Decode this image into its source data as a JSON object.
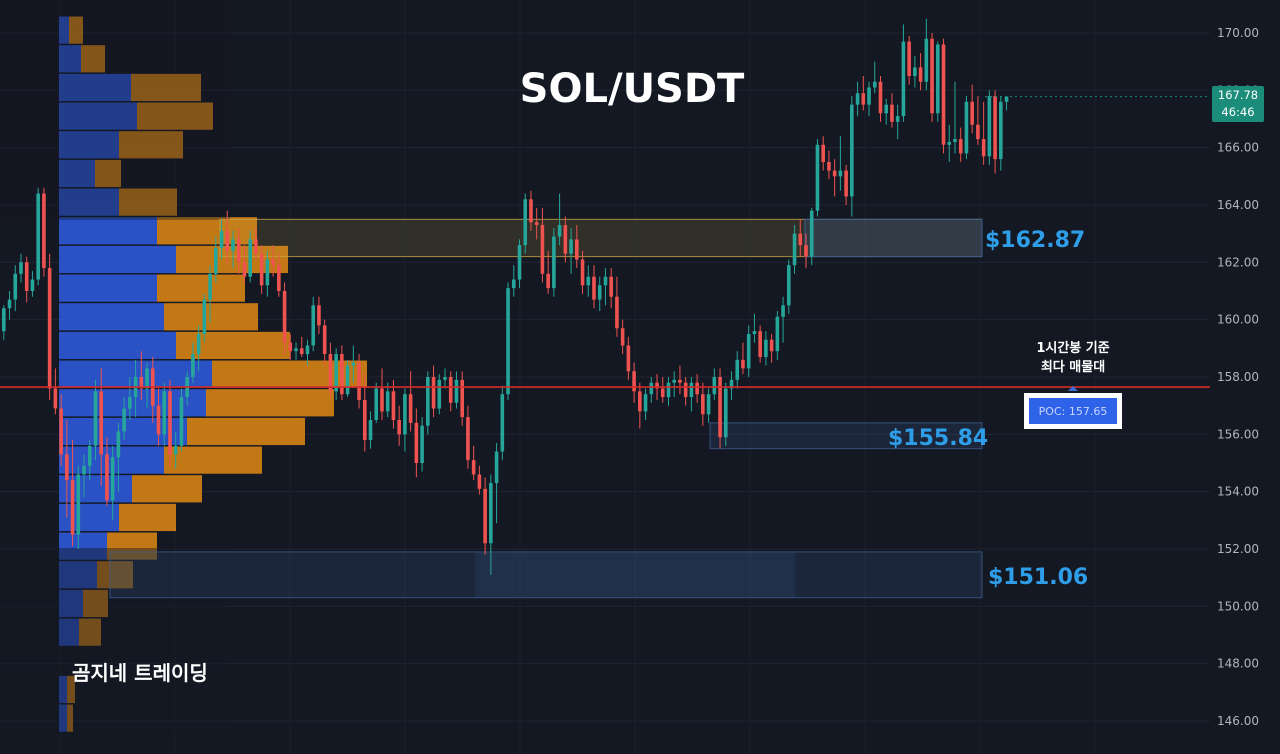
{
  "chart_data": {
    "type": "candlestick",
    "title": "SOL/USDT",
    "watermark": "곰지네 트레이딩",
    "y_axis": {
      "ylim": [
        145.4,
        171.0
      ],
      "ticks": [
        170.0,
        168.0,
        166.0,
        164.0,
        162.0,
        160.0,
        158.0,
        156.0,
        154.0,
        152.0,
        150.0,
        148.0,
        146.0
      ],
      "tick_labels": [
        "170.00",
        "168.00",
        "166.00",
        "164.00",
        "162.00",
        "160.00",
        "158.00",
        "156.00",
        "154.00",
        "152.00",
        "150.00",
        "148.00",
        "146.00"
      ]
    },
    "current_price": {
      "value": 167.78,
      "label": "167.78",
      "countdown": "46:46",
      "color": "#1b8c7a"
    },
    "poc": {
      "value": 157.65,
      "label": "POC: 157.65",
      "note_lines": [
        "1시간봉 기준",
        "최다 매물대"
      ],
      "line_color": "#d42a2a"
    },
    "zones": [
      {
        "label": "$162.87",
        "low": 162.2,
        "high": 163.5,
        "color": "#e0b84a"
      },
      {
        "label": "$155.84",
        "low": 155.5,
        "high": 156.4,
        "color": "#3b6fa8"
      },
      {
        "label": "$151.06",
        "low": 150.3,
        "high": 151.9,
        "color": "#3b6fa8"
      }
    ],
    "volume_profile": {
      "bins": [
        {
          "price": 170.1,
          "buy": 10,
          "sell": 14
        },
        {
          "price": 169.1,
          "buy": 22,
          "sell": 24
        },
        {
          "price": 168.1,
          "buy": 72,
          "sell": 70
        },
        {
          "price": 167.1,
          "buy": 78,
          "sell": 76
        },
        {
          "price": 166.1,
          "buy": 60,
          "sell": 64
        },
        {
          "price": 165.1,
          "buy": 36,
          "sell": 26
        },
        {
          "price": 164.1,
          "buy": 60,
          "sell": 58
        },
        {
          "price": 163.1,
          "buy": 98,
          "sell": 100
        },
        {
          "price": 162.1,
          "buy": 117,
          "sell": 112
        },
        {
          "price": 161.1,
          "buy": 98,
          "sell": 88
        },
        {
          "price": 160.1,
          "buy": 105,
          "sell": 94
        },
        {
          "price": 159.1,
          "buy": 117,
          "sell": 114
        },
        {
          "price": 158.1,
          "buy": 153,
          "sell": 155
        },
        {
          "price": 157.1,
          "buy": 147,
          "sell": 128
        },
        {
          "price": 156.1,
          "buy": 128,
          "sell": 118
        },
        {
          "price": 155.1,
          "buy": 105,
          "sell": 98
        },
        {
          "price": 154.1,
          "buy": 73,
          "sell": 70
        },
        {
          "price": 153.1,
          "buy": 60,
          "sell": 57
        },
        {
          "price": 152.1,
          "buy": 48,
          "sell": 50
        },
        {
          "price": 151.1,
          "buy": 38,
          "sell": 36
        },
        {
          "price": 150.1,
          "buy": 24,
          "sell": 25
        },
        {
          "price": 149.1,
          "buy": 20,
          "sell": 22
        },
        {
          "price": 147.1,
          "buy": 8,
          "sell": 8
        },
        {
          "price": 146.1,
          "buy": 8,
          "sell": 6
        }
      ],
      "buy_color": "#2e5de0",
      "sell_color": "#e08a12"
    },
    "candles": [
      [
        159.6,
        160.5,
        159.3,
        160.4
      ],
      [
        160.4,
        161.0,
        160.0,
        160.7
      ],
      [
        160.7,
        161.9,
        160.3,
        161.6
      ],
      [
        161.6,
        162.3,
        161.3,
        162.0
      ],
      [
        162.0,
        162.2,
        160.6,
        161.0
      ],
      [
        161.0,
        161.7,
        160.8,
        161.4
      ],
      [
        161.4,
        164.6,
        161.2,
        164.4
      ],
      [
        164.4,
        164.6,
        161.5,
        161.8
      ],
      [
        161.8,
        162.3,
        157.2,
        157.6
      ],
      [
        157.6,
        158.3,
        156.7,
        156.9
      ],
      [
        156.9,
        157.4,
        154.9,
        155.3
      ],
      [
        155.3,
        156.5,
        153.1,
        154.4
      ],
      [
        154.4,
        155.8,
        152.1,
        152.5
      ],
      [
        152.5,
        154.9,
        152.0,
        154.6
      ],
      [
        154.6,
        155.3,
        153.8,
        154.9
      ],
      [
        154.9,
        155.8,
        154.4,
        155.6
      ],
      [
        155.6,
        157.9,
        155.1,
        157.5
      ],
      [
        157.5,
        158.3,
        154.2,
        155.3
      ],
      [
        155.3,
        155.9,
        153.5,
        153.7
      ],
      [
        153.7,
        155.6,
        153.0,
        155.2
      ],
      [
        155.2,
        156.4,
        154.0,
        156.1
      ],
      [
        156.1,
        157.3,
        155.8,
        156.9
      ],
      [
        156.9,
        158.0,
        156.5,
        157.3
      ],
      [
        157.3,
        158.6,
        156.6,
        158.0
      ],
      [
        158.0,
        158.9,
        157.2,
        157.6
      ],
      [
        157.6,
        158.5,
        156.9,
        158.3
      ],
      [
        158.3,
        158.7,
        156.4,
        157.0
      ],
      [
        157.0,
        157.6,
        155.6,
        156.0
      ],
      [
        156.0,
        157.8,
        155.6,
        157.5
      ],
      [
        157.5,
        157.9,
        154.9,
        155.3
      ],
      [
        155.3,
        156.1,
        154.8,
        155.6
      ],
      [
        155.6,
        157.6,
        155.4,
        157.3
      ],
      [
        157.3,
        158.2,
        157.0,
        158.0
      ],
      [
        158.0,
        159.2,
        157.8,
        158.8
      ],
      [
        158.8,
        159.8,
        158.2,
        159.5
      ],
      [
        159.5,
        160.9,
        159.2,
        160.7
      ],
      [
        160.7,
        161.9,
        159.9,
        161.6
      ],
      [
        161.6,
        162.9,
        161.3,
        162.5
      ],
      [
        162.5,
        163.5,
        162.1,
        163.1
      ],
      [
        163.1,
        163.8,
        161.9,
        162.4
      ],
      [
        162.4,
        163.1,
        161.8,
        162.8
      ],
      [
        162.8,
        163.2,
        161.6,
        162.0
      ],
      [
        162.0,
        162.6,
        161.3,
        161.5
      ],
      [
        161.5,
        163.1,
        161.3,
        162.8
      ],
      [
        162.8,
        163.2,
        162.1,
        162.3
      ],
      [
        162.3,
        162.6,
        160.9,
        161.2
      ],
      [
        161.2,
        162.4,
        160.8,
        162.1
      ],
      [
        162.1,
        162.6,
        161.5,
        161.9
      ],
      [
        161.9,
        162.3,
        160.8,
        161.0
      ],
      [
        161.0,
        161.3,
        158.8,
        159.2
      ],
      [
        159.2,
        159.5,
        158.6,
        158.9
      ],
      [
        158.9,
        159.2,
        158.6,
        159.0
      ],
      [
        159.0,
        159.4,
        158.7,
        158.8
      ],
      [
        158.8,
        159.3,
        158.4,
        159.1
      ],
      [
        159.1,
        160.8,
        158.9,
        160.5
      ],
      [
        160.5,
        160.8,
        159.5,
        159.8
      ],
      [
        159.8,
        160.0,
        158.4,
        158.8
      ],
      [
        158.8,
        159.2,
        157.3,
        157.5
      ],
      [
        157.5,
        159.0,
        157.2,
        158.8
      ],
      [
        158.8,
        159.1,
        157.2,
        157.4
      ],
      [
        157.4,
        158.6,
        157.3,
        158.4
      ],
      [
        158.4,
        159.1,
        157.8,
        158.5
      ],
      [
        158.5,
        158.8,
        156.9,
        157.2
      ],
      [
        157.2,
        158.1,
        155.4,
        155.8
      ],
      [
        155.8,
        156.8,
        155.5,
        156.5
      ],
      [
        156.5,
        157.8,
        156.4,
        157.6
      ],
      [
        157.6,
        158.3,
        156.5,
        156.8
      ],
      [
        156.8,
        157.8,
        156.6,
        157.5
      ],
      [
        157.5,
        157.9,
        156.2,
        156.5
      ],
      [
        156.5,
        157.0,
        155.6,
        156.0
      ],
      [
        156.0,
        157.6,
        155.4,
        157.4
      ],
      [
        157.4,
        158.2,
        156.1,
        156.4
      ],
      [
        156.4,
        156.9,
        154.5,
        155.0
      ],
      [
        155.0,
        156.6,
        154.7,
        156.3
      ],
      [
        156.3,
        158.2,
        156.0,
        158.0
      ],
      [
        158.0,
        158.4,
        156.6,
        156.9
      ],
      [
        156.9,
        158.1,
        156.7,
        157.9
      ],
      [
        157.9,
        158.3,
        157.6,
        158.0
      ],
      [
        158.0,
        158.2,
        156.8,
        157.1
      ],
      [
        157.1,
        158.2,
        156.9,
        157.9
      ],
      [
        157.9,
        158.2,
        156.3,
        156.6
      ],
      [
        156.6,
        157.0,
        154.8,
        155.1
      ],
      [
        155.1,
        155.6,
        154.4,
        154.6
      ],
      [
        154.6,
        154.9,
        153.9,
        154.1
      ],
      [
        154.1,
        154.5,
        151.8,
        152.2
      ],
      [
        152.2,
        154.6,
        151.1,
        154.3
      ],
      [
        154.3,
        155.7,
        152.9,
        155.4
      ],
      [
        155.4,
        157.7,
        155.1,
        157.4
      ],
      [
        157.4,
        161.3,
        157.2,
        161.1
      ],
      [
        161.1,
        161.9,
        160.8,
        161.4
      ],
      [
        161.4,
        162.8,
        161.1,
        162.6
      ],
      [
        162.6,
        164.4,
        162.3,
        164.2
      ],
      [
        164.2,
        164.5,
        163.1,
        163.4
      ],
      [
        163.4,
        163.9,
        162.8,
        163.3
      ],
      [
        163.3,
        163.9,
        161.3,
        161.6
      ],
      [
        161.6,
        162.4,
        160.9,
        161.1
      ],
      [
        161.1,
        163.2,
        160.8,
        162.9
      ],
      [
        162.9,
        164.4,
        162.6,
        163.3
      ],
      [
        163.3,
        163.6,
        162.0,
        162.3
      ],
      [
        162.3,
        163.2,
        161.6,
        162.8
      ],
      [
        162.8,
        163.3,
        161.8,
        162.1
      ],
      [
        162.1,
        162.4,
        160.9,
        161.2
      ],
      [
        161.2,
        161.9,
        160.8,
        161.5
      ],
      [
        161.5,
        161.9,
        160.4,
        160.7
      ],
      [
        160.7,
        161.5,
        160.3,
        161.2
      ],
      [
        161.2,
        161.8,
        160.5,
        161.5
      ],
      [
        161.5,
        161.8,
        160.4,
        160.8
      ],
      [
        160.8,
        161.5,
        159.4,
        159.7
      ],
      [
        159.7,
        160.0,
        158.8,
        159.1
      ],
      [
        159.1,
        159.4,
        157.9,
        158.2
      ],
      [
        158.2,
        158.5,
        157.1,
        157.5
      ],
      [
        157.5,
        157.8,
        156.2,
        156.8
      ],
      [
        156.8,
        157.6,
        156.5,
        157.4
      ],
      [
        157.4,
        158.0,
        157.1,
        157.8
      ],
      [
        157.8,
        158.1,
        157.2,
        157.6
      ],
      [
        157.6,
        158.0,
        157.1,
        157.3
      ],
      [
        157.3,
        158.0,
        157.0,
        157.8
      ],
      [
        157.8,
        158.2,
        157.3,
        157.9
      ],
      [
        157.9,
        158.4,
        157.4,
        157.8
      ],
      [
        157.8,
        158.0,
        157.0,
        157.3
      ],
      [
        157.3,
        158.0,
        156.8,
        157.8
      ],
      [
        157.8,
        158.1,
        157.1,
        157.4
      ],
      [
        157.4,
        157.8,
        156.3,
        156.7
      ],
      [
        156.7,
        157.6,
        156.4,
        157.4
      ],
      [
        157.4,
        158.3,
        157.2,
        158.0
      ],
      [
        158.0,
        158.3,
        155.5,
        155.9
      ],
      [
        155.9,
        157.8,
        155.6,
        157.6
      ],
      [
        157.6,
        158.2,
        157.2,
        157.9
      ],
      [
        157.9,
        158.9,
        157.6,
        158.6
      ],
      [
        158.6,
        159.2,
        158.1,
        158.3
      ],
      [
        158.3,
        159.8,
        158.0,
        159.5
      ],
      [
        159.5,
        160.2,
        159.2,
        159.6
      ],
      [
        159.6,
        159.8,
        158.5,
        158.7
      ],
      [
        158.7,
        159.6,
        158.4,
        159.3
      ],
      [
        159.3,
        159.5,
        158.5,
        158.9
      ],
      [
        158.9,
        160.3,
        158.6,
        160.1
      ],
      [
        160.1,
        160.8,
        159.2,
        160.5
      ],
      [
        160.5,
        162.1,
        160.2,
        161.9
      ],
      [
        161.9,
        163.3,
        161.6,
        163.0
      ],
      [
        163.0,
        163.5,
        162.2,
        162.6
      ],
      [
        162.6,
        163.0,
        161.8,
        162.2
      ],
      [
        162.2,
        163.9,
        161.9,
        163.8
      ],
      [
        163.8,
        166.3,
        163.6,
        166.1
      ],
      [
        166.1,
        166.4,
        165.2,
        165.5
      ],
      [
        165.5,
        165.9,
        164.9,
        165.2
      ],
      [
        165.2,
        165.6,
        164.3,
        165.0
      ],
      [
        165.0,
        166.4,
        164.5,
        165.2
      ],
      [
        165.2,
        165.4,
        164.0,
        164.3
      ],
      [
        164.3,
        167.8,
        163.6,
        167.5
      ],
      [
        167.5,
        168.3,
        167.1,
        167.9
      ],
      [
        167.9,
        168.5,
        167.3,
        167.5
      ],
      [
        167.5,
        168.3,
        167.1,
        168.1
      ],
      [
        168.1,
        169.0,
        167.9,
        168.3
      ],
      [
        168.3,
        168.5,
        166.9,
        167.2
      ],
      [
        167.2,
        167.7,
        166.8,
        167.5
      ],
      [
        167.5,
        167.9,
        166.7,
        166.9
      ],
      [
        166.9,
        167.5,
        166.3,
        167.1
      ],
      [
        167.1,
        170.3,
        166.9,
        169.7
      ],
      [
        169.7,
        169.9,
        168.2,
        168.5
      ],
      [
        168.5,
        169.2,
        168.1,
        168.8
      ],
      [
        168.8,
        169.3,
        168.0,
        168.3
      ],
      [
        168.3,
        170.5,
        168.0,
        169.8
      ],
      [
        169.8,
        170.0,
        166.9,
        167.2
      ],
      [
        167.2,
        169.7,
        166.9,
        169.6
      ],
      [
        169.6,
        169.8,
        165.8,
        166.1
      ],
      [
        166.1,
        166.8,
        165.5,
        166.2
      ],
      [
        166.2,
        168.3,
        165.8,
        166.3
      ],
      [
        166.3,
        166.7,
        165.5,
        165.8
      ],
      [
        165.8,
        167.8,
        165.6,
        167.6
      ],
      [
        167.6,
        168.2,
        166.5,
        166.8
      ],
      [
        166.8,
        167.8,
        166.1,
        166.3
      ],
      [
        166.3,
        167.6,
        165.4,
        165.7
      ],
      [
        165.7,
        168.0,
        165.4,
        167.8
      ],
      [
        167.8,
        168.0,
        165.1,
        165.6
      ],
      [
        165.6,
        167.8,
        165.2,
        167.6
      ],
      [
        167.6,
        167.8,
        167.3,
        167.78
      ]
    ]
  }
}
